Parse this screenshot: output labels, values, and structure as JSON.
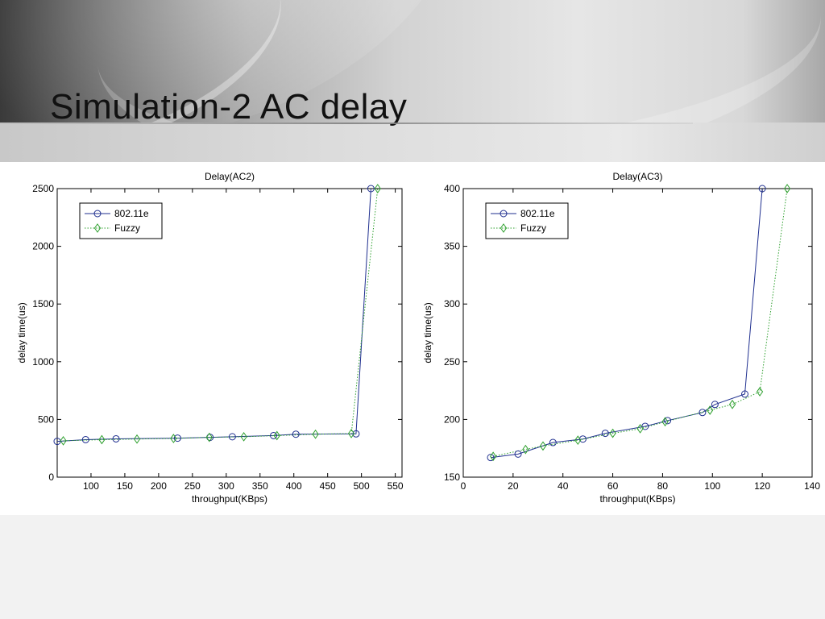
{
  "slide": {
    "title": "Simulation-2 AC delay"
  },
  "colors": {
    "series1": "#1f2f8f",
    "series2": "#2ea02e"
  },
  "chart_data": [
    {
      "type": "line",
      "title": "Delay(AC2)",
      "xlabel": "throughput(KBps)",
      "ylabel": "delay time(us)",
      "xlim": [
        50,
        560
      ],
      "ylim": [
        0,
        2500
      ],
      "xticks": [
        100,
        150,
        200,
        250,
        300,
        350,
        400,
        450,
        500,
        550
      ],
      "yticks": [
        0,
        500,
        1000,
        1500,
        2000,
        2500
      ],
      "legend_position": "top-left",
      "series": [
        {
          "name": "802.11e",
          "style": "solid",
          "marker": "circle",
          "x": [
            50,
            92,
            137,
            228,
            276,
            309,
            370,
            403,
            492,
            514
          ],
          "y": [
            310,
            325,
            332,
            338,
            345,
            350,
            360,
            372,
            375,
            2500
          ]
        },
        {
          "name": "Fuzzy",
          "style": "dotted",
          "marker": "diamond",
          "x": [
            59,
            116,
            168,
            222,
            275,
            326,
            375,
            432,
            485,
            524
          ],
          "y": [
            315,
            325,
            330,
            335,
            345,
            350,
            360,
            372,
            378,
            2500
          ]
        }
      ]
    },
    {
      "type": "line",
      "title": "Delay(AC3)",
      "xlabel": "throughput(KBps)",
      "ylabel": "delay time(us)",
      "xlim": [
        0,
        140
      ],
      "ylim": [
        150,
        400
      ],
      "xticks": [
        0,
        20,
        40,
        60,
        80,
        100,
        120,
        140
      ],
      "yticks": [
        150,
        200,
        250,
        300,
        350,
        400
      ],
      "legend_position": "top-left",
      "series": [
        {
          "name": "802.11e",
          "style": "solid",
          "marker": "circle",
          "x": [
            11,
            22,
            36,
            48,
            57,
            73,
            82,
            96,
            101,
            113,
            120
          ],
          "y": [
            167,
            170,
            180,
            183,
            188,
            194,
            199,
            206,
            213,
            222,
            400
          ]
        },
        {
          "name": "Fuzzy",
          "style": "dotted",
          "marker": "diamond",
          "x": [
            12,
            25,
            32,
            46,
            60,
            71,
            81,
            99,
            108,
            119,
            130
          ],
          "y": [
            168,
            174,
            177,
            182,
            188,
            192,
            198,
            208,
            213,
            224,
            400
          ]
        }
      ]
    }
  ]
}
